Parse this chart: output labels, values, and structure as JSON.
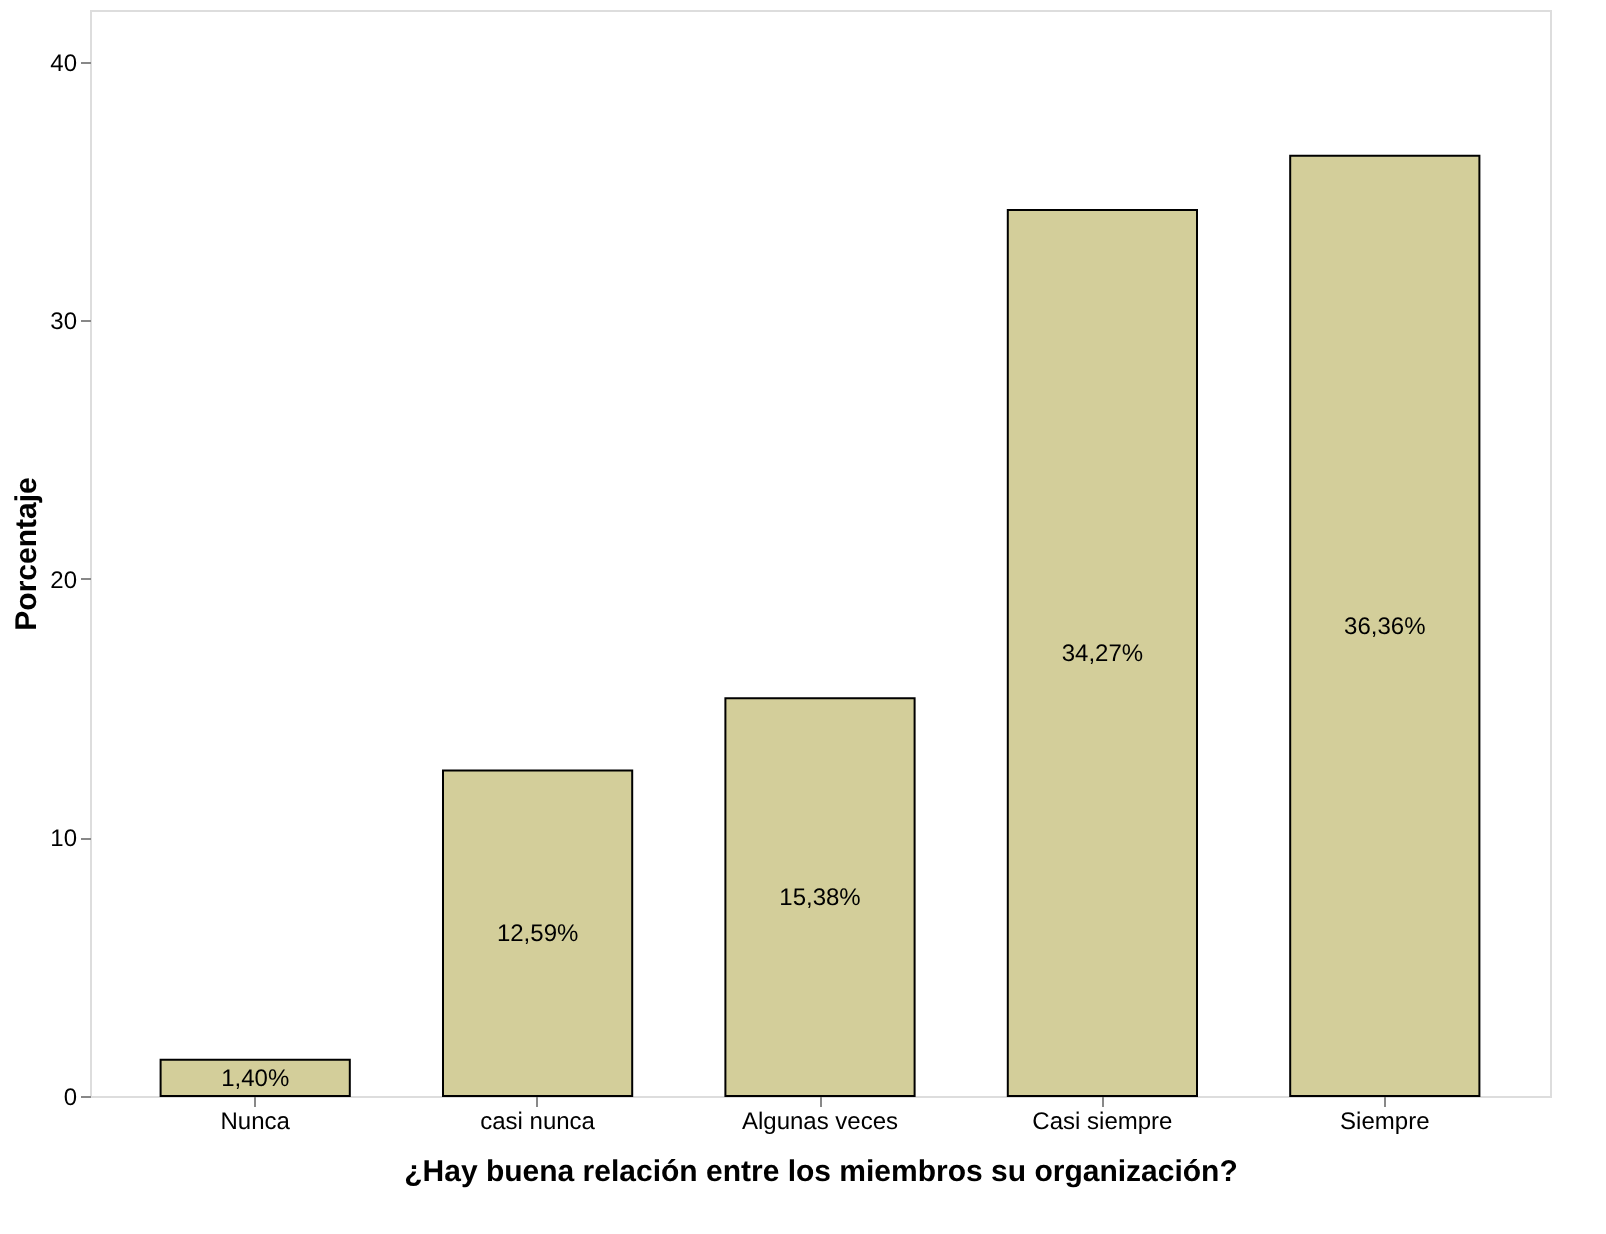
{
  "chart_data": {
    "type": "bar",
    "xlabel": "¿Hay buena relación entre los miembros su organización?",
    "ylabel": "Porcentaje",
    "categories": [
      "Nunca",
      "casi nunca",
      "Algunas veces",
      "Casi siempre",
      "Siempre"
    ],
    "values": [
      1.4,
      12.59,
      15.38,
      34.27,
      36.36
    ],
    "value_labels": [
      "1,40%",
      "12,59%",
      "15,38%",
      "34,27%",
      "36,36%"
    ],
    "color": "#d3ce9a",
    "ylim": [
      0,
      42
    ],
    "yticks": [
      0,
      10,
      20,
      30,
      40
    ],
    "grid": false
  }
}
